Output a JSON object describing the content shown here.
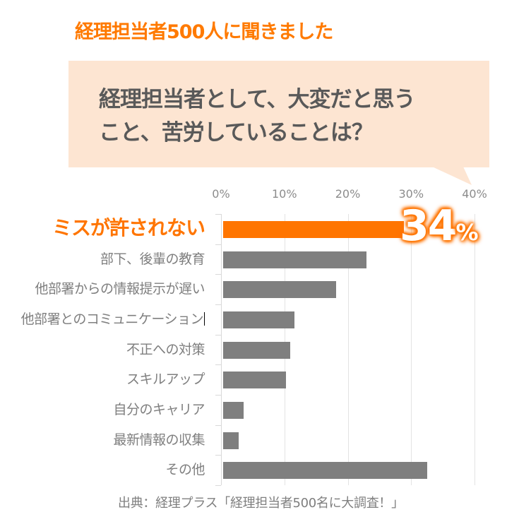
{
  "header": {
    "title": "経理担当者500人に聞きました",
    "title_color": "#ff7a00"
  },
  "bubble": {
    "line1": "経理担当者として、大変だと思う",
    "line2": "こと、苦労していることは？",
    "fill_color": "#fde5d2",
    "text_color": "#595959"
  },
  "callout": {
    "number": "34",
    "unit": "%"
  },
  "source": {
    "text": "出典：経理プラス「経理担当者500名に大調査！」"
  },
  "colors": {
    "highlight_bar": "#ff7500",
    "default_bar": "#7f7f7f",
    "highlight_label": "#ff7500",
    "default_label": "#7f7f7f",
    "gridline": "#e3e3e3"
  },
  "chart_data": {
    "type": "bar",
    "orientation": "horizontal",
    "title": "経理担当者として、大変だと思うこと、苦労していることは？",
    "subtitle": "経理担当者500人に聞きました",
    "xlabel": "",
    "ylabel": "",
    "xlim": [
      0,
      40
    ],
    "x_ticks": [
      "0%",
      "10%",
      "20%",
      "30%",
      "40%"
    ],
    "x_tick_values": [
      0,
      10,
      20,
      30,
      40
    ],
    "grid": true,
    "axis_position": "top",
    "categories": [
      "ミスが許されない",
      "部下、後輩の教育",
      "他部署からの情報提示が遅い",
      "他部署とのコミュニケーション",
      "不正への対策",
      "スキルアップ",
      "自分のキャリア",
      "最新情報の収集",
      "その他"
    ],
    "values": [
      34,
      23,
      18.2,
      11.6,
      10.9,
      10.2,
      3.6,
      2.8,
      32.5
    ],
    "highlighted_index": 0,
    "annotations": [
      {
        "category": "ミスが許されない",
        "text": "34%"
      }
    ],
    "source": "出典：経理プラス「経理担当者500名に大調査！」"
  }
}
